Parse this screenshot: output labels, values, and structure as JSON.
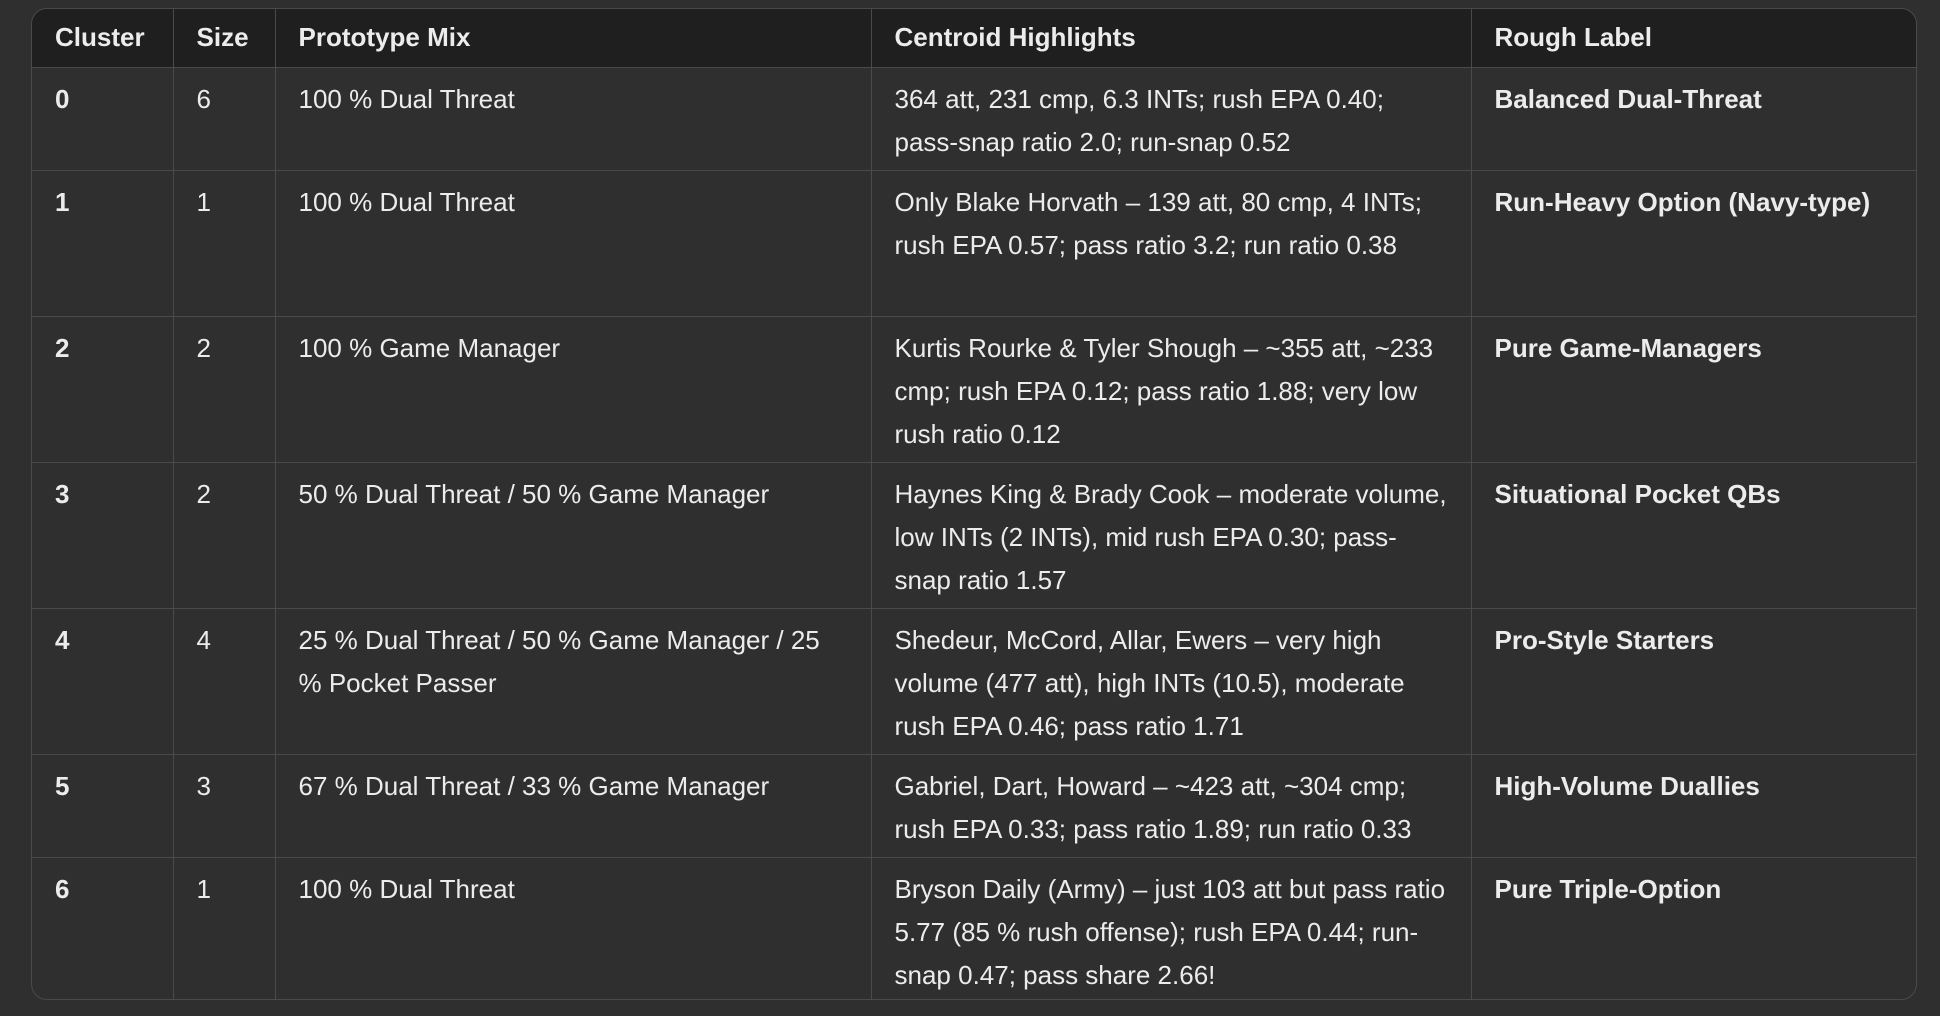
{
  "table": {
    "headers": [
      "Cluster",
      "Size",
      "Prototype Mix",
      "Centroid Highlights",
      "Rough Label"
    ],
    "rows": [
      [
        "0",
        "6",
        "100 % Dual Threat",
        "364 att, 231 cmp, 6.3 INTs; rush EPA 0.40; pass-snap ratio 2.0; run-snap 0.52",
        "Balanced Dual-Threat"
      ],
      [
        "1",
        "1",
        "100 % Dual Threat",
        "Only Blake Horvath – 139 att, 80 cmp, 4 INTs; rush EPA 0.57; pass ratio 3.2; run ratio 0.38",
        "Run-Heavy Option (Navy-type)"
      ],
      [
        "2",
        "2",
        "100 % Game Manager",
        "Kurtis Rourke & Tyler Shough – ~355 att, ~233 cmp; rush EPA 0.12; pass ratio 1.88; very low rush ratio 0.12",
        "Pure Game-Managers"
      ],
      [
        "3",
        "2",
        "50 % Dual Threat / 50 % Game Manager",
        "Haynes King & Brady Cook – moderate volume, low INTs (2 INTs), mid rush EPA 0.30; pass-snap ratio 1.57",
        "Situational Pocket QBs"
      ],
      [
        "4",
        "4",
        "25 % Dual Threat / 50 % Game Manager / 25 % Pocket Passer",
        "Shedeur, McCord, Allar, Ewers – very high volume (477 att), high INTs (10.5), moderate rush EPA 0.46; pass ratio 1.71",
        "Pro-Style Starters"
      ],
      [
        "5",
        "3",
        "67 % Dual Threat / 33 % Game Manager",
        "Gabriel, Dart, Howard – ~423 att, ~304 cmp; rush EPA 0.33; pass ratio 1.89; run ratio 0.33",
        "High-Volume Duallies"
      ],
      [
        "6",
        "1",
        "100 % Dual Threat",
        "Bryson Daily (Army) – just 103 att but pass ratio 5.77 (85 % rush offense); rush EPA 0.44; run-snap 0.47; pass share 2.66!",
        "Pure Triple-Option"
      ]
    ]
  }
}
